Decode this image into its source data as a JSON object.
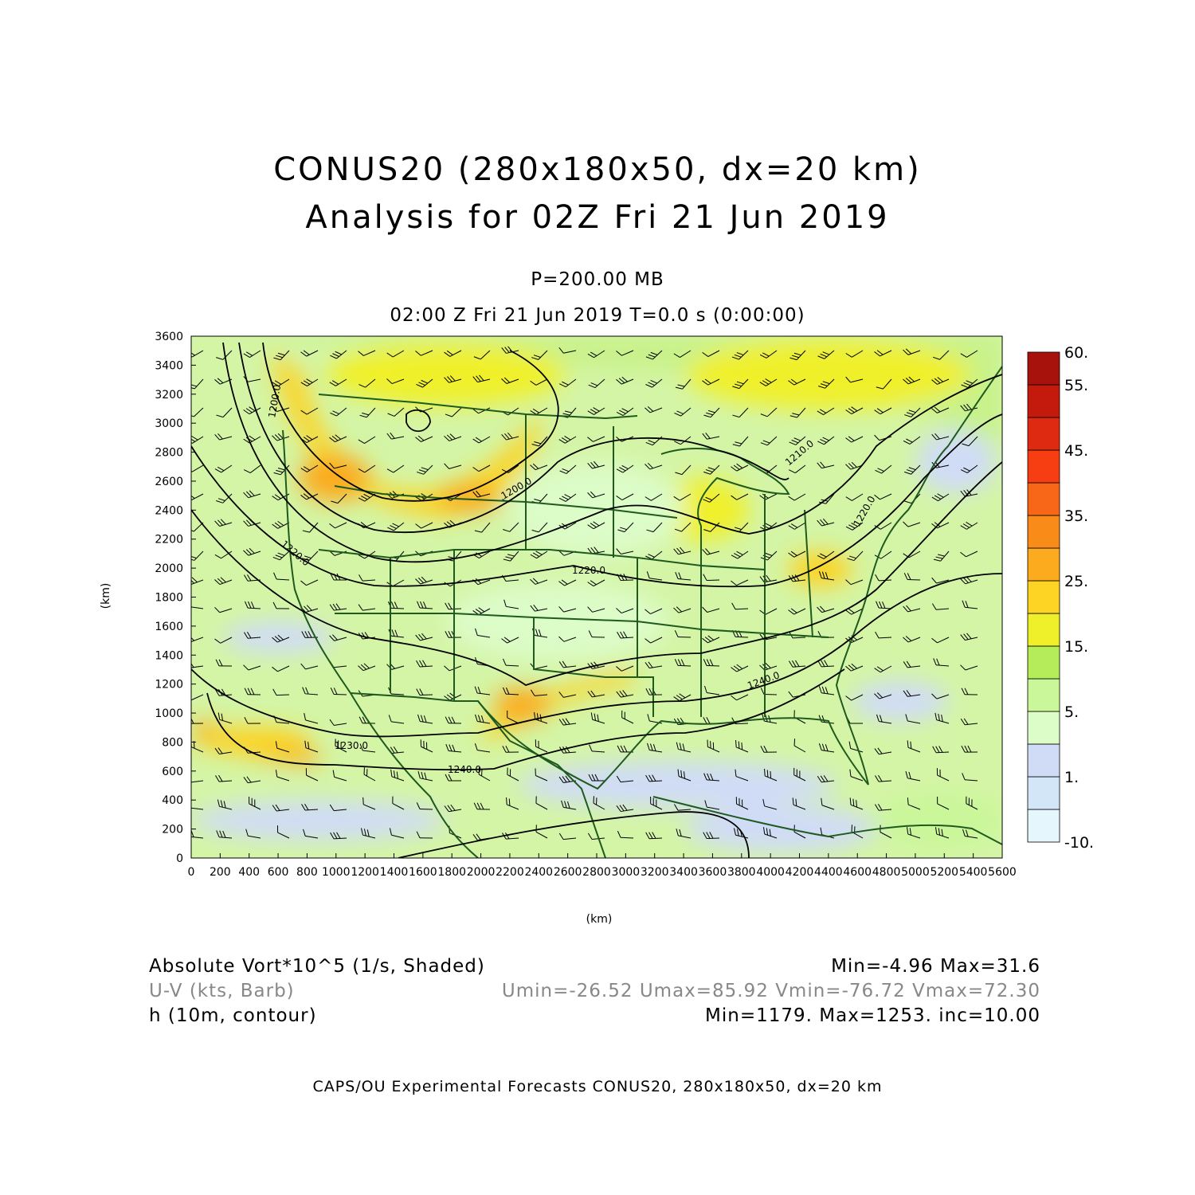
{
  "title": {
    "line1": "CONUS20 (280x180x50, dx=20 km)",
    "line2": "Analysis for 02Z Fri 21 Jun 2019"
  },
  "level_label": "P=200.00 MB",
  "time_label": "02:00 Z Fri 21 Jun 2019    T=0.0 s (0:00:00)",
  "axes": {
    "x_label": "(km)",
    "y_label": "(km)",
    "x_ticks": [
      "0",
      "200",
      "400",
      "600",
      "800",
      "1000",
      "1200",
      "1400",
      "1600",
      "1800",
      "2000",
      "2200",
      "2400",
      "2600",
      "2800",
      "3000",
      "3200",
      "3400",
      "3600",
      "3800",
      "4000",
      "4200",
      "4400",
      "4600",
      "4800",
      "5000",
      "5200",
      "5400",
      "5600"
    ],
    "y_ticks": [
      "0",
      "200",
      "400",
      "600",
      "800",
      "1000",
      "1200",
      "1400",
      "1600",
      "1800",
      "2000",
      "2200",
      "2400",
      "2600",
      "2800",
      "3000",
      "3200",
      "3400",
      "3600"
    ],
    "x_range": [
      0,
      5600
    ],
    "y_range": [
      0,
      3600
    ]
  },
  "colorbar": {
    "levels": [
      "-10.",
      "1.",
      "5.",
      "15.",
      "25.",
      "35.",
      "45.",
      "55.",
      "60."
    ],
    "colors": [
      "#e6f6fd",
      "#d2e6f8",
      "#d0dcf6",
      "#dcfcc8",
      "#caf79a",
      "#b4ec5a",
      "#f0f02a",
      "#fdd324",
      "#fcab1e",
      "#f98b19",
      "#f86617",
      "#f63e12",
      "#de2a10",
      "#c41a0e",
      "#a8120c"
    ]
  },
  "contour_labels": [
    "1200.0",
    "1200.0",
    "1210.0",
    "1220.0",
    "1220.0",
    "1220.0",
    "1240.0",
    "1240.0",
    "1230.0"
  ],
  "legend": {
    "row1_left": "Absolute Vort*10^5 (1/s, Shaded)",
    "row1_right": "Min=-4.96 Max=31.6",
    "row2_left": "U-V (kts, Barb)",
    "row2_right": "Umin=-26.52 Umax=85.92 Vmin=-76.72 Vmax=72.30",
    "row3_left": "h (10m, contour)",
    "row3_right": "Min=1179. Max=1253. inc=10.00"
  },
  "colors": {
    "background_field": "#d4f5a6",
    "map_lines": "#1f5a1f",
    "contours": "#000000",
    "barbs": "#000000",
    "legend_row2": "#888888"
  },
  "footer": "CAPS/OU Experimental Forecasts  CONUS20, 280x180x50, dx=20 km"
}
